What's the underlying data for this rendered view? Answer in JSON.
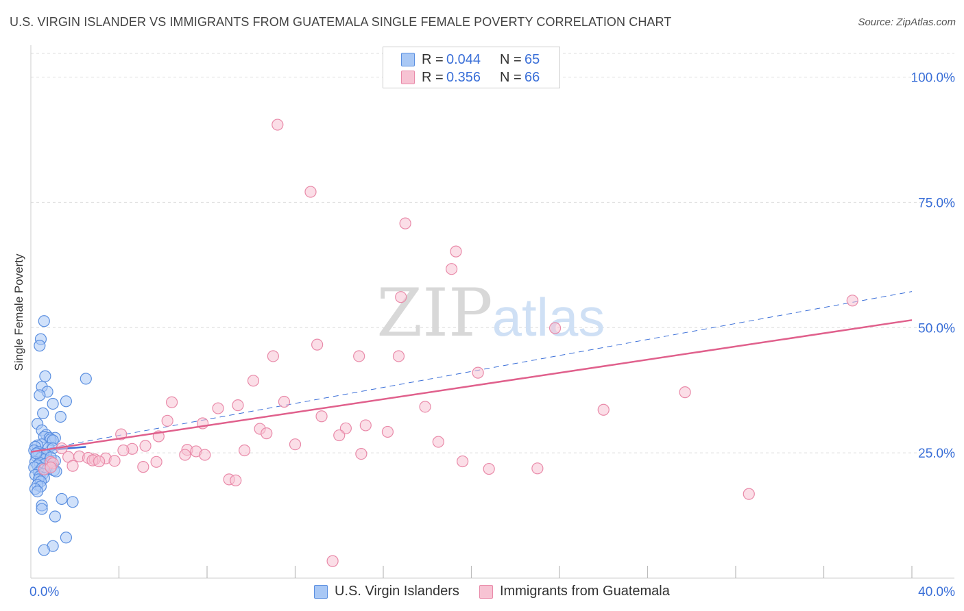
{
  "title": "U.S. VIRGIN ISLANDER VS IMMIGRANTS FROM GUATEMALA SINGLE FEMALE POVERTY CORRELATION CHART",
  "source": "Source: ZipAtlas.com",
  "watermark": {
    "zip": "ZIP",
    "atlas": "atlas"
  },
  "legend": [
    {
      "r_label": "R =",
      "r_value": "0.044",
      "n_label": "N =",
      "n_value": "65"
    },
    {
      "r_label": "R =",
      "r_value": "0.356",
      "n_label": "N =",
      "n_value": "66"
    }
  ],
  "bottom_legend": [
    {
      "label": "U.S. Virgin Islanders"
    },
    {
      "label": "Immigrants from Guatemala"
    }
  ],
  "colors": {
    "blue_fill": "#a9c8f5",
    "blue_stroke": "#5b8fe0",
    "blue_line": "#3b6fd8",
    "pink_fill": "#f7c3d3",
    "pink_stroke": "#e98aa9",
    "pink_line": "#e0608c",
    "tick_label": "#3a6fd8",
    "grid": "#dddddd"
  },
  "chart_data": {
    "type": "scatter",
    "xlabel": "",
    "ylabel": "Single Female Poverty",
    "xlim": [
      0,
      40
    ],
    "ylim": [
      0,
      105
    ],
    "x_tick_labels": [
      {
        "value": 0,
        "label": "0.0%"
      },
      {
        "value": 40,
        "label": "40.0%"
      }
    ],
    "y_tick_labels": [
      {
        "value": 25,
        "label": "25.0%"
      },
      {
        "value": 50,
        "label": "50.0%"
      },
      {
        "value": 75,
        "label": "75.0%"
      },
      {
        "value": 100,
        "label": "100.0%"
      }
    ],
    "series": [
      {
        "name": "U.S. Virgin Islanders",
        "r": 0.044,
        "n": 65,
        "trend": {
          "style": "dashed",
          "x": [
            0,
            40
          ],
          "y": [
            25.3,
            57.2
          ]
        },
        "trend_solid": {
          "x": [
            0,
            2.5
          ],
          "y": [
            25.3,
            26.2
          ]
        },
        "points": [
          [
            0.6,
            51.3
          ],
          [
            0.45,
            47.7
          ],
          [
            0.4,
            46.4
          ],
          [
            0.65,
            40.3
          ],
          [
            2.5,
            39.8
          ],
          [
            0.5,
            38.2
          ],
          [
            0.75,
            37.2
          ],
          [
            0.4,
            36.5
          ],
          [
            1.6,
            35.3
          ],
          [
            1.0,
            34.8
          ],
          [
            0.55,
            32.9
          ],
          [
            1.35,
            32.2
          ],
          [
            0.3,
            30.8
          ],
          [
            0.5,
            29.5
          ],
          [
            0.7,
            28.6
          ],
          [
            0.6,
            28.2
          ],
          [
            0.85,
            28.0
          ],
          [
            1.1,
            28.0
          ],
          [
            0.9,
            27.7
          ],
          [
            1.0,
            27.5
          ],
          [
            0.5,
            26.7
          ],
          [
            0.3,
            26.5
          ],
          [
            0.2,
            26.2
          ],
          [
            0.8,
            26.0
          ],
          [
            1.0,
            25.9
          ],
          [
            0.15,
            25.5
          ],
          [
            0.35,
            25.2
          ],
          [
            0.55,
            24.8
          ],
          [
            0.7,
            24.6
          ],
          [
            0.25,
            24.3
          ],
          [
            0.45,
            24.0
          ],
          [
            0.6,
            23.7
          ],
          [
            0.85,
            23.5
          ],
          [
            1.1,
            23.4
          ],
          [
            0.2,
            23.2
          ],
          [
            0.4,
            23.0
          ],
          [
            0.65,
            22.8
          ],
          [
            0.3,
            22.5
          ],
          [
            0.95,
            22.3
          ],
          [
            0.15,
            22.1
          ],
          [
            0.5,
            21.9
          ],
          [
            0.75,
            21.7
          ],
          [
            1.05,
            21.5
          ],
          [
            1.15,
            21.3
          ],
          [
            0.35,
            21.1
          ],
          [
            0.55,
            20.8
          ],
          [
            0.2,
            20.6
          ],
          [
            0.4,
            20.3
          ],
          [
            0.6,
            20.0
          ],
          [
            0.35,
            19.7
          ],
          [
            0.45,
            19.3
          ],
          [
            0.3,
            18.6
          ],
          [
            0.45,
            18.3
          ],
          [
            0.2,
            17.8
          ],
          [
            0.3,
            17.3
          ],
          [
            1.4,
            15.8
          ],
          [
            1.9,
            15.2
          ],
          [
            0.5,
            14.5
          ],
          [
            0.5,
            13.8
          ],
          [
            1.1,
            12.3
          ],
          [
            1.6,
            8.1
          ],
          [
            1.0,
            6.4
          ],
          [
            0.6,
            5.6
          ],
          [
            0.9,
            24.1
          ],
          [
            0.25,
            24.9
          ]
        ]
      },
      {
        "name": "Immigrants from Guatemala",
        "r": 0.356,
        "n": 66,
        "trend": {
          "style": "solid",
          "x": [
            0,
            40
          ],
          "y": [
            25.2,
            51.5
          ]
        },
        "points": [
          [
            11.2,
            90.5
          ],
          [
            12.7,
            77.1
          ],
          [
            17.0,
            70.8
          ],
          [
            19.3,
            65.2
          ],
          [
            19.1,
            61.7
          ],
          [
            37.3,
            55.4
          ],
          [
            16.8,
            56.1
          ],
          [
            23.8,
            49.9
          ],
          [
            13.0,
            46.6
          ],
          [
            14.9,
            44.3
          ],
          [
            16.7,
            44.3
          ],
          [
            11.0,
            44.3
          ],
          [
            20.3,
            41.0
          ],
          [
            10.1,
            39.4
          ],
          [
            29.7,
            37.1
          ],
          [
            6.4,
            35.1
          ],
          [
            11.5,
            35.2
          ],
          [
            9.4,
            34.5
          ],
          [
            8.5,
            33.9
          ],
          [
            17.9,
            34.2
          ],
          [
            26.0,
            33.6
          ],
          [
            13.2,
            32.3
          ],
          [
            6.2,
            31.4
          ],
          [
            7.8,
            30.9
          ],
          [
            15.2,
            30.5
          ],
          [
            14.3,
            29.9
          ],
          [
            16.2,
            29.2
          ],
          [
            10.4,
            29.8
          ],
          [
            10.7,
            28.9
          ],
          [
            4.1,
            28.7
          ],
          [
            14.0,
            28.5
          ],
          [
            5.8,
            28.3
          ],
          [
            18.5,
            27.2
          ],
          [
            12.0,
            26.7
          ],
          [
            5.2,
            26.4
          ],
          [
            1.4,
            25.9
          ],
          [
            4.6,
            25.8
          ],
          [
            4.2,
            25.5
          ],
          [
            9.7,
            25.5
          ],
          [
            7.1,
            25.6
          ],
          [
            7.5,
            25.3
          ],
          [
            15.0,
            24.8
          ],
          [
            7.0,
            24.6
          ],
          [
            7.9,
            24.6
          ],
          [
            2.2,
            24.3
          ],
          [
            1.7,
            24.2
          ],
          [
            2.6,
            24.0
          ],
          [
            3.4,
            23.9
          ],
          [
            2.9,
            23.7
          ],
          [
            2.8,
            23.5
          ],
          [
            3.8,
            23.4
          ],
          [
            3.1,
            23.3
          ],
          [
            0.9,
            23.2
          ],
          [
            5.7,
            23.2
          ],
          [
            1.0,
            22.9
          ],
          [
            19.6,
            23.3
          ],
          [
            1.9,
            22.4
          ],
          [
            5.1,
            22.2
          ],
          [
            20.8,
            21.8
          ],
          [
            23.0,
            21.9
          ],
          [
            0.6,
            21.7
          ],
          [
            9.0,
            19.7
          ],
          [
            9.3,
            19.5
          ],
          [
            32.6,
            16.8
          ],
          [
            13.7,
            3.4
          ],
          [
            0.9,
            22.1
          ]
        ]
      }
    ]
  }
}
